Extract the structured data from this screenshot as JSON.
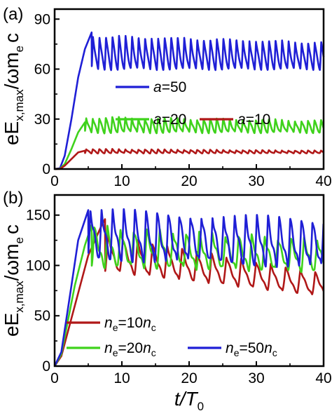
{
  "chart_data": [
    {
      "panel_label": "(a)",
      "type": "line",
      "ylabel": {
        "main": "eE",
        "sub": "x,max",
        "rest": "/ωm",
        "sub2": "e",
        "tail": "c"
      },
      "xlim": [
        0,
        40
      ],
      "ylim": [
        0,
        96
      ],
      "x_ticks": [
        0,
        10,
        20,
        30,
        40
      ],
      "y_ticks": [
        0,
        30,
        60,
        90
      ],
      "grid": false,
      "legend_placement": "center",
      "series": [
        {
          "name_parts": [
            "a",
            "=50"
          ],
          "color": "#1f1fd6",
          "model": {
            "rise": [
              [
                0,
                0
              ],
              [
                0.8,
                0.5
              ],
              [
                1.5,
                8
              ],
              [
                2.5,
                30
              ],
              [
                3.5,
                55
              ],
              [
                4.5,
                72
              ],
              [
                5.5,
                82
              ]
            ],
            "t_osc": 5.5,
            "upper": 80,
            "lower": 60,
            "period": 0.97,
            "decay_upper_to": 76
          }
        },
        {
          "name_parts": [
            "a",
            "=20"
          ],
          "color": "#3fd21c",
          "model": {
            "rise": [
              [
                0,
                0
              ],
              [
                0.8,
                0.2
              ],
              [
                1.5,
                3
              ],
              [
                2.5,
                12
              ],
              [
                3.5,
                22
              ],
              [
                4.5,
                28
              ]
            ],
            "t_osc": 4.5,
            "upper": 31,
            "lower": 22,
            "period": 0.97,
            "decay_upper_to": 29
          }
        },
        {
          "name_parts": [
            "a",
            "=10"
          ],
          "color": "#b01818",
          "model": {
            "rise": [
              [
                0,
                0
              ],
              [
                0.8,
                0.1
              ],
              [
                1.5,
                2
              ],
              [
                2.5,
                6
              ],
              [
                3.5,
                10
              ],
              [
                4.5,
                11
              ]
            ],
            "t_osc": 4.5,
            "upper": 12,
            "lower": 9.5,
            "period": 0.97,
            "decay_upper_to": 11
          }
        }
      ]
    },
    {
      "panel_label": "(b)",
      "type": "line",
      "ylabel": {
        "main": "eE",
        "sub": "x,max",
        "rest": "/ωm",
        "sub2": "e",
        "tail": "c"
      },
      "xlabel": {
        "main": "t/T",
        "sub": "0"
      },
      "xlim": [
        0,
        40
      ],
      "ylim": [
        0,
        170
      ],
      "x_ticks": [
        0,
        10,
        20,
        30,
        40
      ],
      "y_ticks": [
        0,
        50,
        100,
        150
      ],
      "grid": false,
      "legend_placement": "bottom",
      "series": [
        {
          "name_parts": [
            "n",
            "e",
            "=10",
            "n",
            "c"
          ],
          "color": "#b01818",
          "model": {
            "rise": [
              [
                0,
                0
              ],
              [
                1,
                10
              ],
              [
                3,
                60
              ],
              [
                5,
                110
              ],
              [
                7,
                140
              ],
              [
                7.5,
                146
              ]
            ],
            "t_osc": 7.5,
            "upper": 130,
            "lower": 95,
            "period": 2.2,
            "decay_upper_to": 92,
            "decay_lower_to": 70
          }
        },
        {
          "name_parts": [
            "n",
            "e",
            "=20",
            "n",
            "c"
          ],
          "color": "#3fd21c",
          "model": {
            "rise": [
              [
                0,
                0
              ],
              [
                1,
                12
              ],
              [
                3,
                80
              ],
              [
                4.5,
                120
              ],
              [
                5.5,
                140
              ]
            ],
            "t_osc": 5.5,
            "upper": 138,
            "lower": 100,
            "period": 1.95,
            "decay_upper_to": 125,
            "decay_lower_to": 95
          }
        },
        {
          "name_parts": [
            "n",
            "e",
            "=50",
            "n",
            "c"
          ],
          "color": "#1f1fd6",
          "model": {
            "rise": [
              [
                0,
                0
              ],
              [
                1,
                14
              ],
              [
                2.5,
                80
              ],
              [
                3.5,
                125
              ],
              [
                4.5,
                145
              ],
              [
                5,
                155
              ]
            ],
            "t_osc": 5,
            "upper": 155,
            "lower": 108,
            "period": 1.65,
            "decay_upper_to": 145,
            "decay_lower_to": 100
          }
        }
      ]
    }
  ]
}
